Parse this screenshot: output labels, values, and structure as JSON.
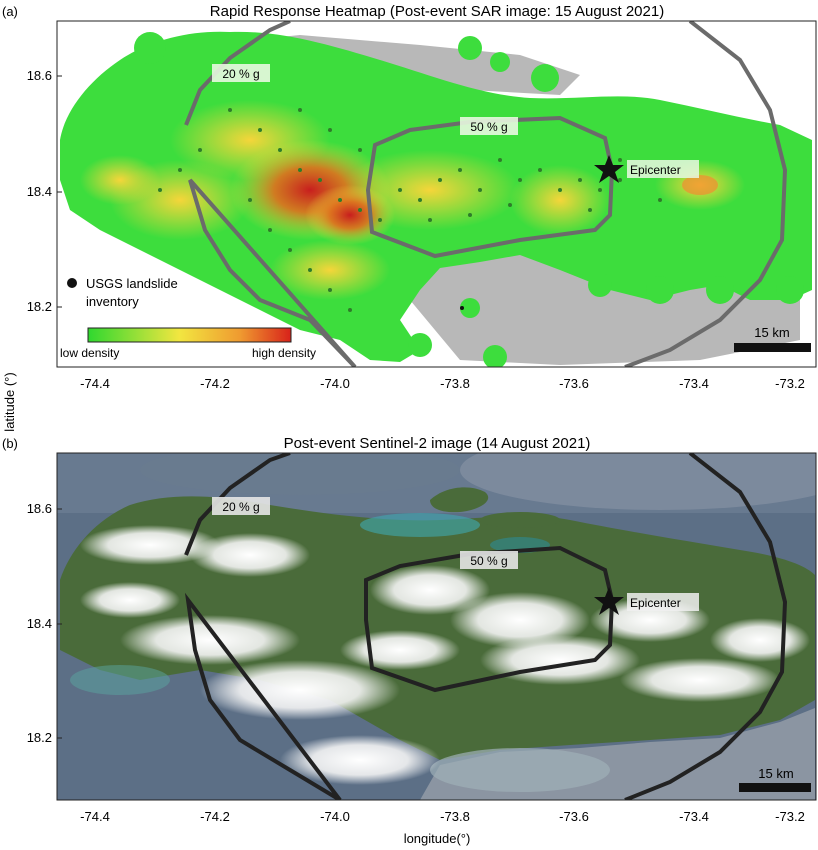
{
  "panel_a": {
    "tag": "(a)",
    "title": "Rapid Response Heatmap (Post-event SAR image: 15 August 2021)",
    "contour_20": "20 % g",
    "contour_50": "50 % g",
    "epicenter": "Epicenter",
    "legend_line1": "USGS landslide",
    "legend_line2": "inventory",
    "colorbar_low": "low density",
    "colorbar_high": "high density",
    "scalebar": "15 km",
    "yticks": [
      "18.6",
      "18.4",
      "18.2"
    ],
    "xticks": [
      "-74.4",
      "-74.2",
      "-74.0",
      "-73.8",
      "-73.6",
      "-73.4",
      "-73.2"
    ]
  },
  "panel_b": {
    "tag": "(b)",
    "title": "Post-event Sentinel-2 image (14 August 2021)",
    "contour_20": "20 % g",
    "contour_50": "50 % g",
    "epicenter": "Epicenter",
    "scalebar": "15 km",
    "yticks": [
      "18.6",
      "18.4",
      "18.2"
    ],
    "xticks": [
      "-74.4",
      "-74.2",
      "-74.0",
      "-73.8",
      "-73.6",
      "-73.4",
      "-73.2"
    ]
  },
  "axes": {
    "ylabel": "latitude (°)",
    "xlabel": "longitude(°)"
  },
  "colors": {
    "heat_low": "#33dd33",
    "heat_mid": "#f2e640",
    "heat_high": "#d9261c",
    "contour_a": "#6b6b6b",
    "contour_b": "#222222",
    "sea_b": "#5c6f86",
    "land_b": "#4a6b3a"
  }
}
